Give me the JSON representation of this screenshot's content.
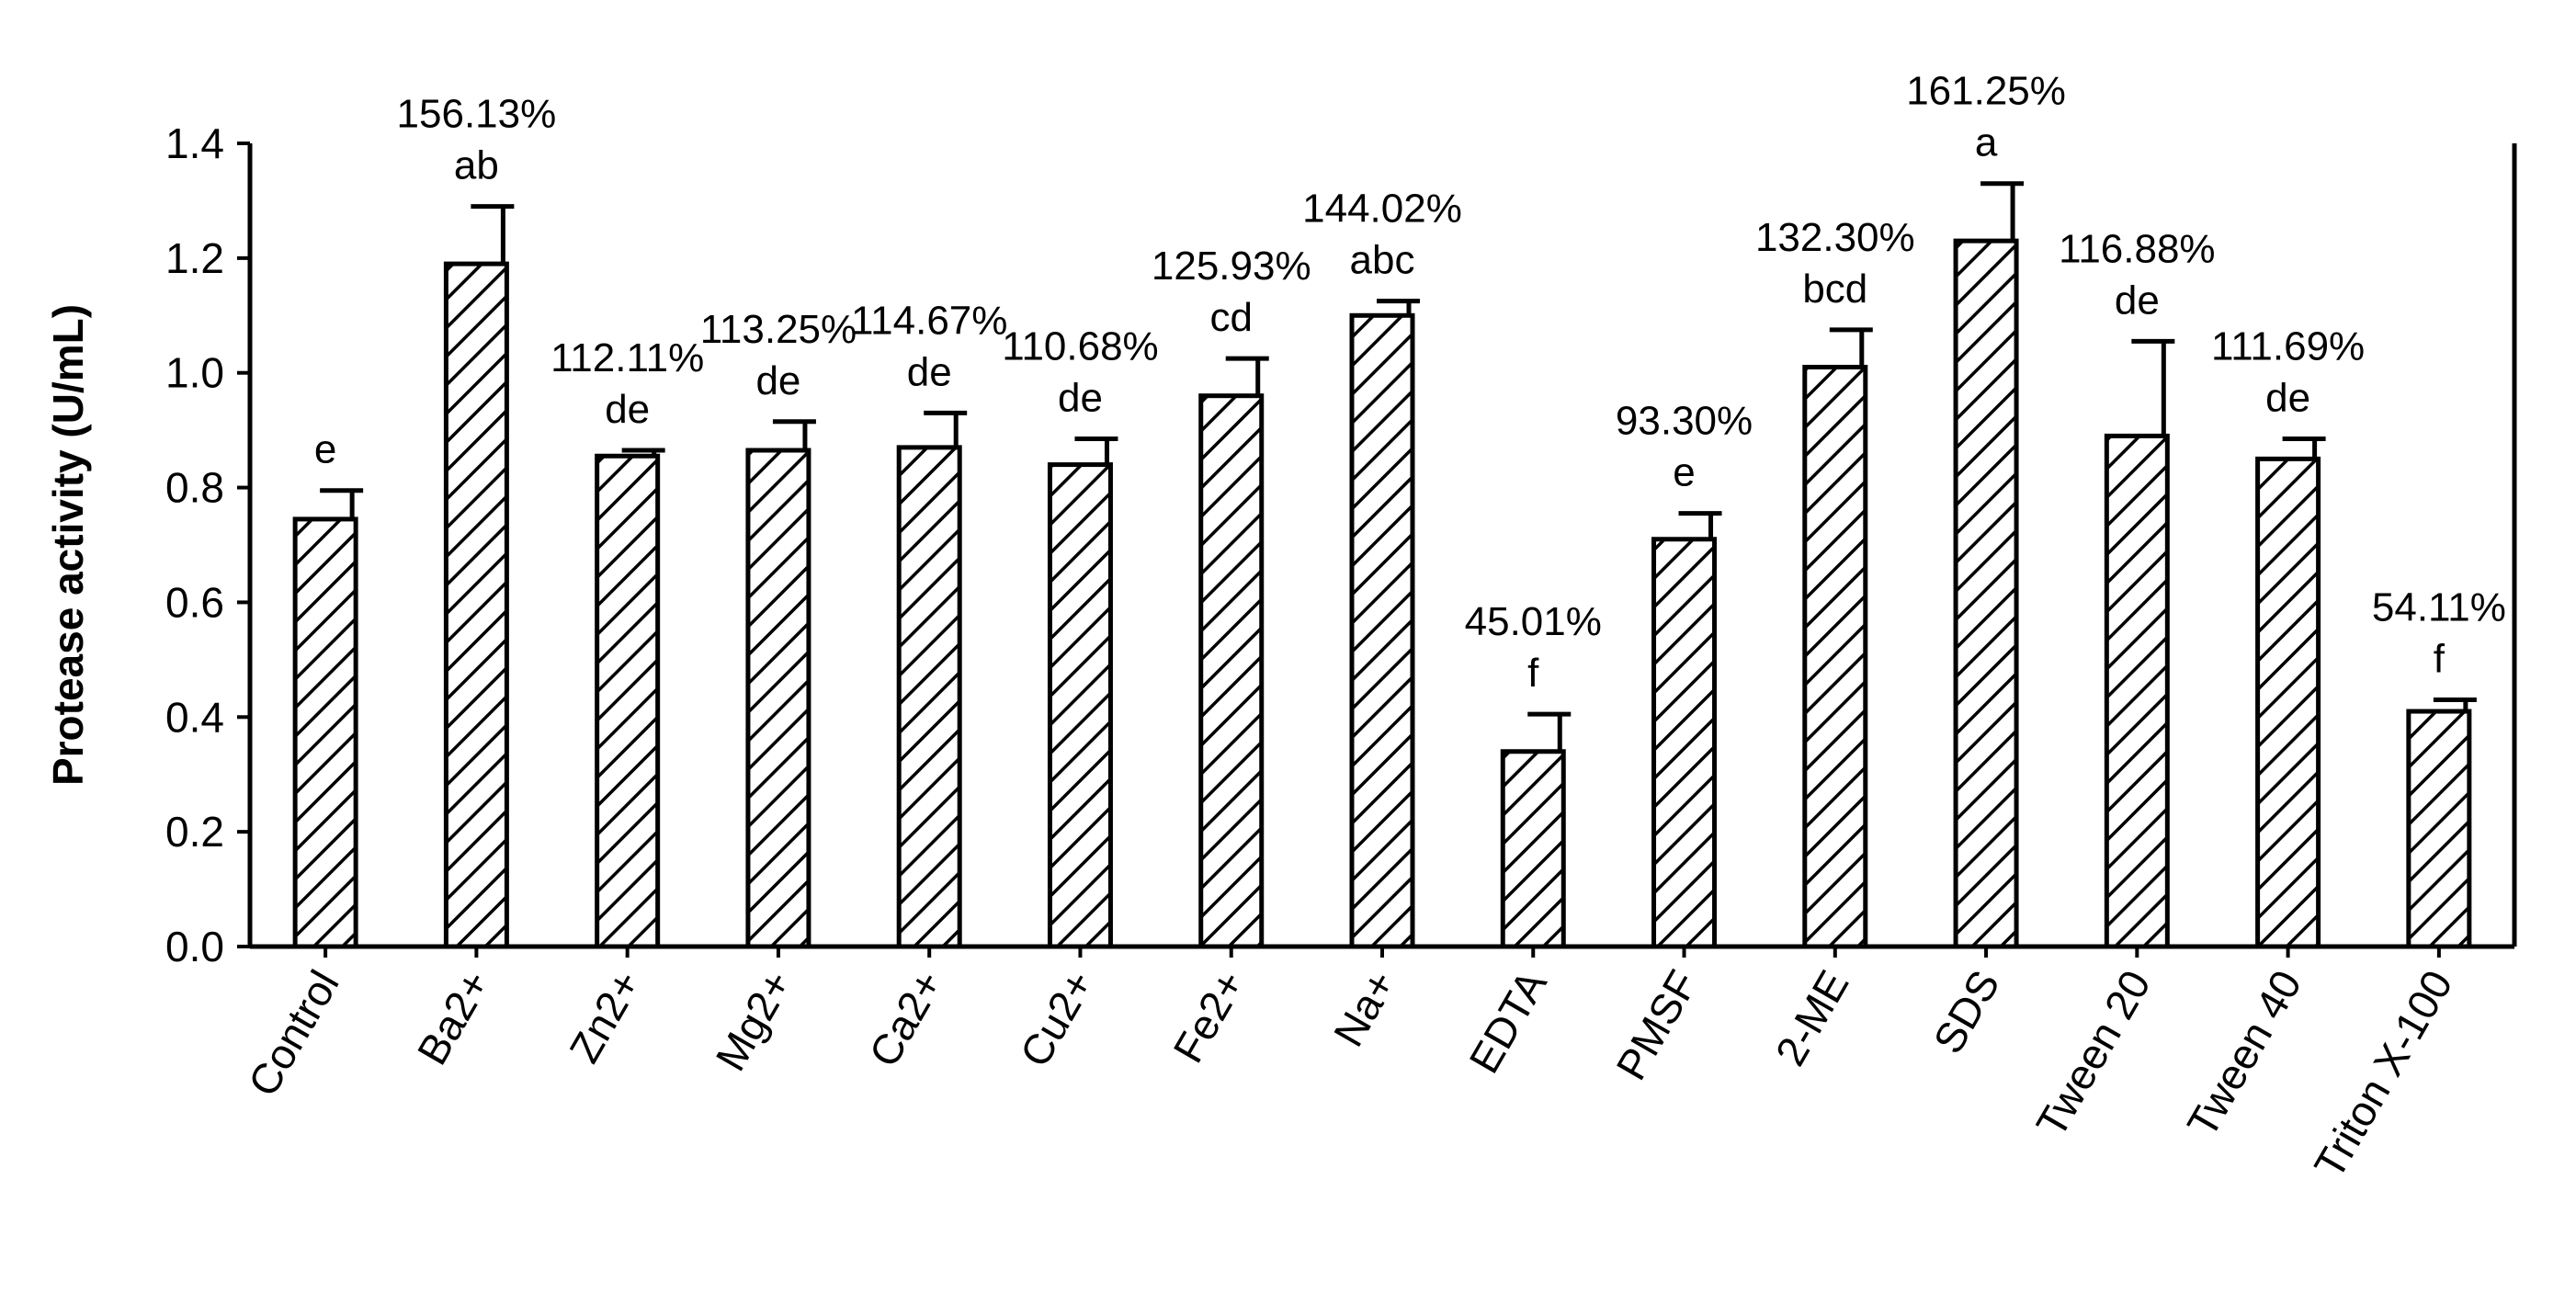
{
  "chart_data": {
    "type": "bar",
    "title": "",
    "xlabel": "",
    "ylabel": "Protease activity (U/mL)",
    "ylim": [
      0,
      1.4
    ],
    "yticks": [
      "0.0",
      "0.2",
      "0.4",
      "0.6",
      "0.8",
      "1.0",
      "1.2",
      "1.4"
    ],
    "grid": false,
    "pattern": "diagonal-hatch",
    "bar_fill": "#ffffff",
    "bar_stroke": "#000000",
    "categories": [
      "Control",
      "Ba2+",
      "Zn2+",
      "Mg2+",
      "Ca2+",
      "Cu2+",
      "Fe2+",
      "Na+",
      "EDTA",
      "PMSF",
      "2-ME",
      "SDS",
      "Tween 20",
      "Tween 40",
      "Triton X-100"
    ],
    "values": [
      0.745,
      1.19,
      0.855,
      0.865,
      0.87,
      0.84,
      0.96,
      1.1,
      0.34,
      0.71,
      1.01,
      1.23,
      0.89,
      0.85,
      0.41
    ],
    "errors": [
      0.05,
      0.1,
      0.01,
      0.05,
      0.06,
      0.045,
      0.065,
      0.025,
      0.065,
      0.045,
      0.065,
      0.1,
      0.165,
      0.035,
      0.02
    ],
    "percent_labels": [
      "",
      "156.13%",
      "112.11%",
      "113.25%",
      "114.67%",
      "110.68%",
      "125.93%",
      "144.02%",
      "45.01%",
      "93.30%",
      "132.30%",
      "161.25%",
      "116.88%",
      "111.69%",
      "54.11%"
    ],
    "significance_letters": [
      "e",
      "ab",
      "de",
      "de",
      "de",
      "de",
      "cd",
      "abc",
      "f",
      "e",
      "bcd",
      "a",
      "de",
      "de",
      "f"
    ]
  }
}
